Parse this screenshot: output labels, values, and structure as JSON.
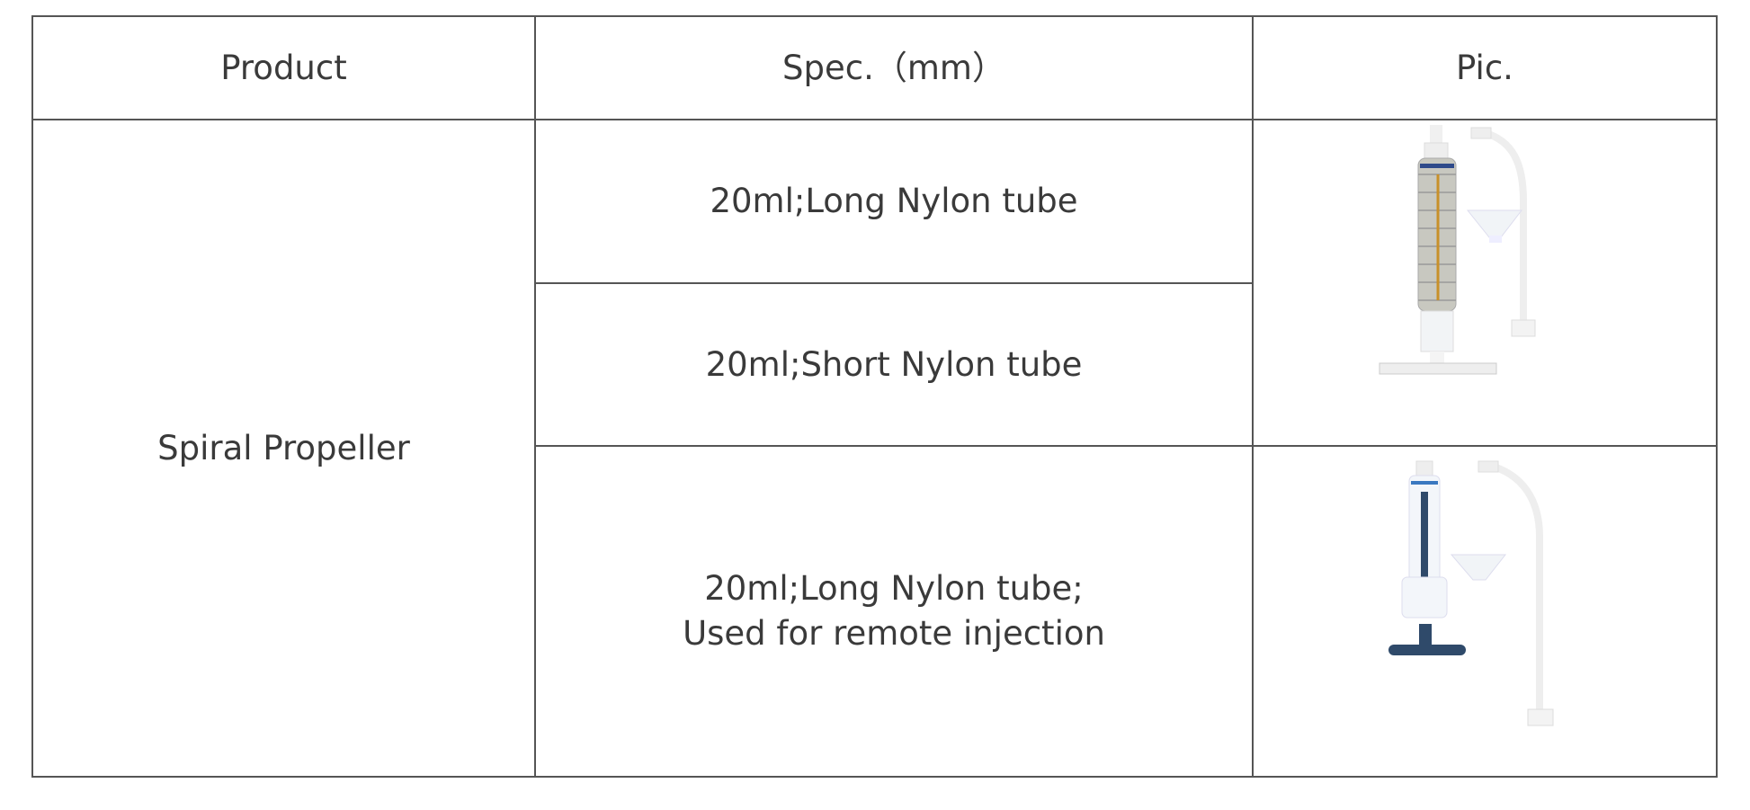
{
  "table": {
    "headers": [
      "Product",
      "Spec.（mm）",
      "Pic."
    ],
    "product": "Spiral Propeller",
    "specs": [
      {
        "line1": "20ml;Long Nylon tube",
        "line2": ""
      },
      {
        "line1": "20ml;Short Nylon tube",
        "line2": ""
      },
      {
        "line1": "20ml;Long Nylon tube;",
        "line2": "Used for remote injection"
      }
    ]
  },
  "colors": {
    "border": "#555555",
    "text": "#3a3a3a",
    "plunger_dark": "#2f4a6a"
  }
}
